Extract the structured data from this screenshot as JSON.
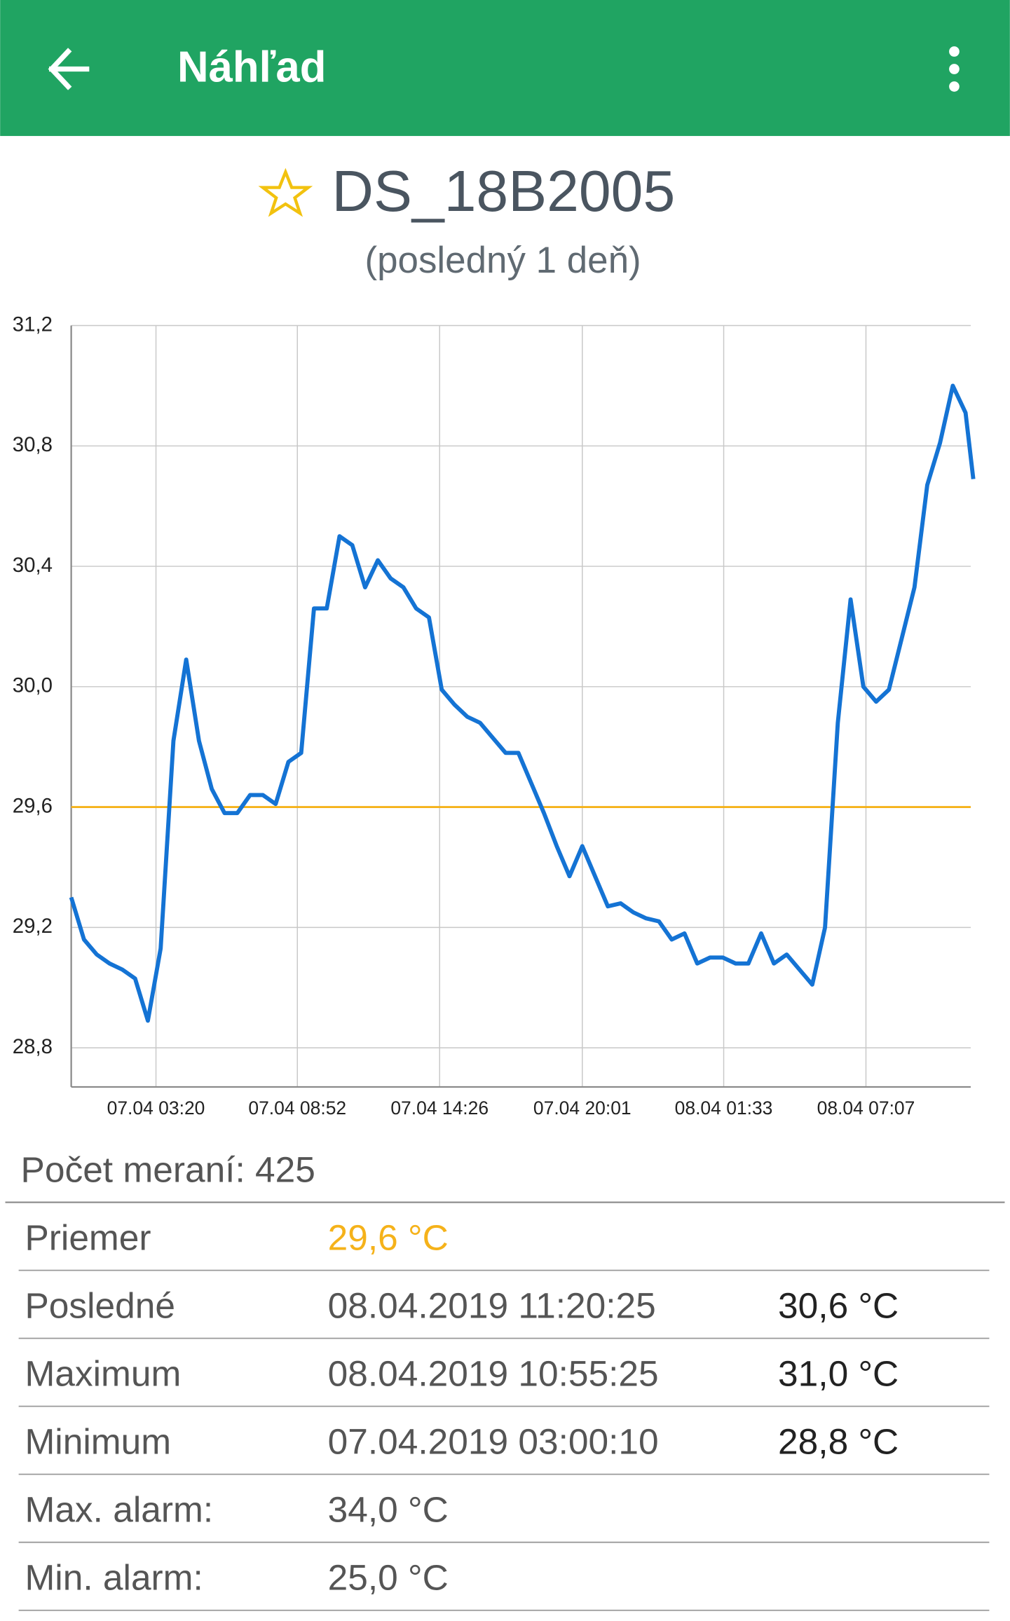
{
  "app_bar": {
    "title": "Náhľad"
  },
  "sensor": {
    "name": "DS_18B2005",
    "period": "(posledný 1 deň)"
  },
  "chart_data": {
    "type": "line",
    "x": [
      "07.04 00:01",
      "07.04 00:31",
      "07.04 01:01",
      "07.04 01:31",
      "07.04 02:01",
      "07.04 02:31",
      "07.04 03:01",
      "07.04 03:31",
      "07.04 04:01",
      "07.04 04:31",
      "07.04 05:01",
      "07.04 05:31",
      "07.04 06:01",
      "07.04 06:31",
      "07.04 07:01",
      "07.04 07:31",
      "07.04 08:01",
      "07.04 08:31",
      "07.04 09:01",
      "07.04 09:31",
      "07.04 10:01",
      "07.04 10:31",
      "07.04 11:01",
      "07.04 11:31",
      "07.04 12:01",
      "07.04 12:31",
      "07.04 13:01",
      "07.04 13:31",
      "07.04 14:01",
      "07.04 14:31",
      "07.04 15:01",
      "07.04 15:31",
      "07.04 16:01",
      "07.04 16:31",
      "07.04 17:01",
      "07.04 17:31",
      "07.04 18:01",
      "07.04 18:31",
      "07.04 19:01",
      "07.04 19:31",
      "07.04 20:01",
      "07.04 20:31",
      "07.04 21:01",
      "07.04 21:31",
      "07.04 22:01",
      "07.04 22:31",
      "07.04 23:01",
      "07.04 23:31",
      "08.04 00:01",
      "08.04 00:31",
      "08.04 01:01",
      "08.04 01:31",
      "08.04 02:01",
      "08.04 02:31",
      "08.04 03:01",
      "08.04 03:31",
      "08.04 04:01",
      "08.04 04:31",
      "08.04 05:01",
      "08.04 05:31",
      "08.04 06:01",
      "08.04 06:31",
      "08.04 07:01",
      "08.04 07:31",
      "08.04 08:01",
      "08.04 08:31",
      "08.04 09:01",
      "08.04 09:31",
      "08.04 10:01",
      "08.04 10:31",
      "08.04 11:01",
      "08.04 11:19"
    ],
    "values": [
      29.3,
      29.16,
      29.11,
      29.08,
      29.06,
      29.03,
      28.89,
      29.13,
      29.82,
      30.09,
      29.82,
      29.66,
      29.58,
      29.58,
      29.64,
      29.64,
      29.61,
      29.75,
      29.78,
      30.26,
      30.26,
      30.5,
      30.47,
      30.33,
      30.42,
      30.36,
      30.33,
      30.26,
      30.23,
      29.99,
      29.94,
      29.9,
      29.88,
      29.83,
      29.78,
      29.78,
      29.68,
      29.58,
      29.47,
      29.37,
      29.47,
      29.37,
      29.27,
      29.28,
      29.25,
      29.23,
      29.22,
      29.16,
      29.18,
      29.08,
      29.1,
      29.1,
      29.08,
      29.08,
      29.18,
      29.08,
      29.11,
      29.06,
      29.01,
      29.2,
      29.88,
      30.29,
      30.0,
      29.95,
      29.99,
      30.16,
      30.33,
      30.67,
      30.81,
      31.0,
      30.91,
      30.69
    ],
    "color": "#1473d4",
    "xlim": [
      "07.04 00:01",
      "08.04 11:13"
    ],
    "xticks": [
      "07.04 03:20",
      "07.04 08:52",
      "07.04 14:26",
      "07.04 20:01",
      "08.04 01:33",
      "08.04 07:07"
    ],
    "ylim": [
      28.67,
      31.2
    ],
    "yticks": [
      {
        "value": 28.8,
        "label": "28,8"
      },
      {
        "value": 29.2,
        "label": "29,2"
      },
      {
        "value": 29.6,
        "label": "29,6"
      },
      {
        "value": 30.0,
        "label": "30,0"
      },
      {
        "value": 30.4,
        "label": "30,4"
      },
      {
        "value": 30.8,
        "label": "30,8"
      },
      {
        "value": 31.2,
        "label": "31,2"
      }
    ],
    "grid": true,
    "mean_line": {
      "value": 29.6,
      "color": "#f5b21a"
    }
  },
  "count": "Počet meraní: 425",
  "stats": {
    "rows": [
      [
        "Priemer",
        "29,6 °C"
      ],
      [
        "Posledné",
        "08.04.2019 11:20:25",
        "30,6 °C"
      ],
      [
        "Maximum",
        "08.04.2019 10:55:25",
        "31,0 °C"
      ],
      [
        "Minimum",
        "07.04.2019 03:00:10",
        "28,8 °C"
      ],
      [
        "Max. alarm:",
        "34,0 °C"
      ],
      [
        "Min. alarm:",
        "25,0 °C"
      ]
    ]
  }
}
